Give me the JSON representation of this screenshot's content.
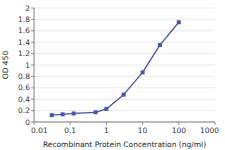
{
  "chart_data": {
    "type": "line",
    "x": [
      0.031,
      0.062,
      0.125,
      0.5,
      1.0,
      3.0,
      10.0,
      30.0,
      100.0
    ],
    "values": [
      0.12,
      0.135,
      0.15,
      0.17,
      0.23,
      0.48,
      0.87,
      1.35,
      1.75
    ],
    "color": "#4455aa",
    "marker": "square",
    "xlabel": "Recombinant Protein Concentration (ng/ml)",
    "ylabel": "OD 450",
    "log": "x",
    "xlim": [
      0.01,
      1000
    ],
    "ylim": [
      0,
      2
    ],
    "xticks": [
      0.01,
      0.1,
      1,
      10,
      100,
      1000
    ],
    "yticks": [
      0,
      0.2,
      0.4,
      0.6,
      0.8,
      1,
      1.2,
      1.4,
      1.6,
      1.8,
      2
    ],
    "grid": "y"
  }
}
